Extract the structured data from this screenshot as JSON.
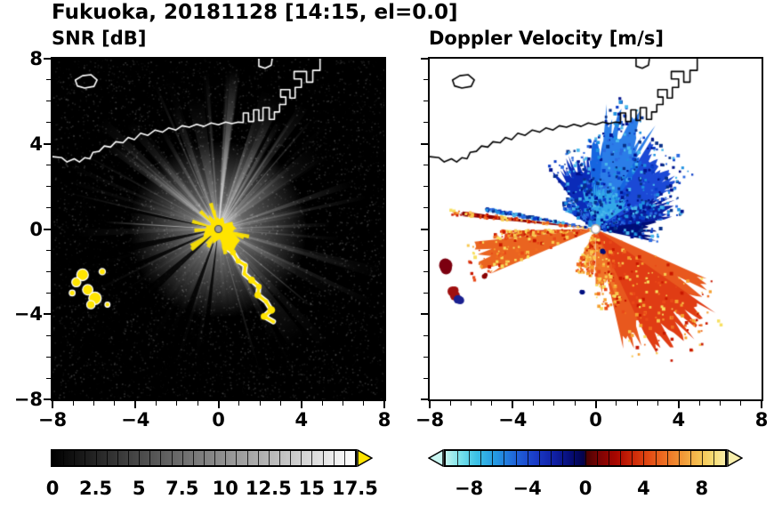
{
  "title": "Fukuoka, 20181128 [14:15, el=0.0]",
  "panels": [
    {
      "label": "SNR [dB]"
    },
    {
      "label": "Doppler Velocity [m/s]"
    }
  ],
  "axes": {
    "xlim": [
      -8,
      8
    ],
    "ylim": [
      -8,
      8
    ],
    "xtick_values": [
      -8,
      -4,
      0,
      4,
      8
    ],
    "xtick_labels": [
      "−8",
      "−4",
      "0",
      "4",
      "8"
    ],
    "ytick_values": [
      8,
      4,
      0,
      -4,
      -8
    ],
    "ytick_labels": [
      "8",
      "4",
      "0",
      "−4",
      "−8"
    ]
  },
  "colorbars": [
    {
      "min": 0,
      "max": 17.5,
      "tick_values": [
        0,
        2.5,
        5,
        7.5,
        10,
        12.5,
        15,
        17.5
      ],
      "ticks": [
        "0",
        "2.5",
        "5",
        "7.5",
        "10",
        "12.5",
        "15",
        "17.5"
      ],
      "gradient": [
        "#000000",
        "#ffffff"
      ],
      "minor_divisions": 28,
      "over_arrow_color": "#ffe400"
    },
    {
      "min": -9.6,
      "max": 9.6,
      "tick_values": [
        -8,
        -4,
        0,
        4,
        8
      ],
      "ticks": [
        "−8",
        "−4",
        "0",
        "4",
        "8"
      ],
      "stops": [
        [
          0,
          "#c2f4ee"
        ],
        [
          0.05,
          "#7ae2ea"
        ],
        [
          0.11,
          "#3cc2e6"
        ],
        [
          0.18,
          "#2498e2"
        ],
        [
          0.25,
          "#2064da"
        ],
        [
          0.32,
          "#1a3cc8"
        ],
        [
          0.39,
          "#1020a4"
        ],
        [
          0.45,
          "#060c74"
        ],
        [
          0.495,
          "#03034a"
        ],
        [
          0.505,
          "#4c0202"
        ],
        [
          0.55,
          "#7c0404"
        ],
        [
          0.61,
          "#a80600"
        ],
        [
          0.67,
          "#cc2808"
        ],
        [
          0.73,
          "#e44c14"
        ],
        [
          0.79,
          "#ee7224"
        ],
        [
          0.85,
          "#f29a38"
        ],
        [
          0.91,
          "#f5c252"
        ],
        [
          0.96,
          "#f7dd74"
        ],
        [
          1,
          "#f9edaa"
        ]
      ],
      "minor_divisions": 24,
      "under_arrow_color": "#c9f6f2",
      "over_arrow_color": "#f8efac"
    }
  ],
  "coastline": {
    "island": [
      [
        -6.9,
        7.0
      ],
      [
        -6.55,
        7.2
      ],
      [
        -6.15,
        7.25
      ],
      [
        -5.85,
        7.0
      ],
      [
        -6.0,
        6.7
      ],
      [
        -6.45,
        6.62
      ],
      [
        -6.8,
        6.72
      ],
      [
        -6.9,
        7.0
      ]
    ],
    "main": [
      [
        -8,
        3.4
      ],
      [
        -7.55,
        3.35
      ],
      [
        -7.3,
        3.15
      ],
      [
        -6.95,
        3.3
      ],
      [
        -6.7,
        3.15
      ],
      [
        -6.45,
        3.35
      ],
      [
        -6.2,
        3.3
      ],
      [
        -6.05,
        3.6
      ],
      [
        -5.75,
        3.65
      ],
      [
        -5.5,
        3.9
      ],
      [
        -5.2,
        3.85
      ],
      [
        -4.95,
        4.1
      ],
      [
        -4.6,
        4.05
      ],
      [
        -4.35,
        4.3
      ],
      [
        -4.05,
        4.2
      ],
      [
        -3.75,
        4.5
      ],
      [
        -3.4,
        4.4
      ],
      [
        -3.05,
        4.65
      ],
      [
        -2.7,
        4.55
      ],
      [
        -2.4,
        4.75
      ],
      [
        -2.05,
        4.65
      ],
      [
        -1.75,
        4.85
      ],
      [
        -1.4,
        4.78
      ],
      [
        -1.05,
        4.92
      ],
      [
        -0.7,
        4.82
      ],
      [
        -0.35,
        4.98
      ],
      [
        0,
        4.9
      ],
      [
        0.35,
        5.02
      ],
      [
        0.65,
        4.95
      ],
      [
        0.95,
        5.02
      ],
      [
        1.2,
        5.0
      ],
      [
        1.2,
        5.45
      ],
      [
        1.45,
        5.45
      ],
      [
        1.45,
        5.05
      ],
      [
        1.7,
        5.05
      ],
      [
        1.7,
        5.6
      ],
      [
        1.95,
        5.6
      ],
      [
        1.95,
        5.1
      ],
      [
        2.15,
        5.1
      ],
      [
        2.15,
        5.7
      ],
      [
        2.45,
        5.7
      ],
      [
        2.45,
        5.15
      ],
      [
        2.7,
        5.15
      ],
      [
        2.7,
        5.5
      ],
      [
        2.95,
        5.5
      ],
      [
        2.95,
        5.85
      ],
      [
        3.25,
        5.85
      ],
      [
        3.25,
        6.2
      ],
      [
        3.0,
        6.2
      ],
      [
        3.0,
        6.55
      ],
      [
        3.45,
        6.55
      ],
      [
        3.45,
        6.15
      ],
      [
        3.7,
        6.15
      ],
      [
        3.7,
        6.65
      ],
      [
        4.0,
        6.65
      ],
      [
        4.0,
        7.05
      ],
      [
        3.65,
        7.05
      ],
      [
        3.65,
        7.4
      ],
      [
        4.25,
        7.4
      ],
      [
        4.25,
        6.9
      ],
      [
        4.55,
        6.9
      ],
      [
        4.55,
        7.45
      ],
      [
        4.9,
        7.45
      ],
      [
        4.9,
        8.05
      ]
    ],
    "top_piece": [
      [
        1.95,
        8.05
      ],
      [
        1.95,
        7.65
      ],
      [
        2.25,
        7.55
      ],
      [
        2.55,
        7.7
      ],
      [
        2.6,
        8.05
      ]
    ]
  },
  "chart_data": [
    {
      "type": "heatmap",
      "variable": "SNR",
      "units": "dB",
      "title": "SNR [dB]",
      "site": "Fukuoka",
      "date": "20181128",
      "time": "14:15",
      "elevation_deg": 0.0,
      "xlim": [
        -8,
        8
      ],
      "ylim": [
        -8,
        8
      ],
      "xticks": [
        -8,
        -4,
        0,
        4,
        8
      ],
      "yticks": [
        -8,
        -4,
        0,
        4,
        8
      ],
      "colorbar": {
        "range": [
          0,
          17.5
        ],
        "ticks": [
          0,
          2.5,
          5,
          7.5,
          10,
          12.5,
          15,
          17.5
        ],
        "colormap": "black-to-white",
        "over_color": "#ffe400"
      },
      "description": "Radar PPI centered on the radar at the origin: bright white radial echo fan strongest to the north and east, saturated yellow clutter at the center and along the coastline running southeast, isolated yellow ground-clutter patches to the southwest, dark blocked-beam spokes toward the west/southwest, faint noise speckle elsewhere, coastline outlined in white.",
      "render": {
        "speckle_count": 9000,
        "ray_count": 110,
        "bright_ray_count": 14,
        "glow_radius": 100,
        "wide_wedges": [
          [
            68,
            9,
            165,
            0.3
          ],
          [
            100,
            7,
            150,
            0.26
          ],
          [
            38,
            8,
            140,
            0.22
          ],
          [
            130,
            6,
            120,
            0.18
          ],
          [
            305,
            8,
            155,
            0.22
          ],
          [
            332,
            5,
            120,
            0.16
          ],
          [
            12,
            6,
            110,
            0.15
          ],
          [
            85,
            5,
            175,
            0.3
          ],
          [
            55,
            4,
            170,
            0.28
          ]
        ],
        "west_ray": [
          176.5,
          128,
          0.5,
          0.85
        ],
        "dark_rays": [
          [
            192,
            2.2
          ],
          [
            204,
            1.6
          ],
          [
            222,
            2.8
          ],
          [
            250,
            2.0
          ],
          [
            263,
            1.4
          ],
          [
            168,
            1.0
          ]
        ],
        "clutter_path": [
          [
            0.35,
            -0.85
          ],
          [
            0.7,
            -1.1
          ],
          [
            0.95,
            -1.5
          ],
          [
            1.3,
            -1.7
          ],
          [
            1.25,
            -2.1
          ],
          [
            1.6,
            -2.4
          ],
          [
            1.95,
            -2.7
          ],
          [
            1.9,
            -3.1
          ],
          [
            2.3,
            -3.4
          ],
          [
            2.55,
            -3.8
          ],
          [
            2.2,
            -4.1
          ],
          [
            2.65,
            -4.35
          ]
        ],
        "clutter_blobs": [
          [
            -6.55,
            -2.15,
            0.28
          ],
          [
            -6.85,
            -2.5,
            0.22
          ],
          [
            -6.3,
            -2.85,
            0.25
          ],
          [
            -5.95,
            -3.25,
            0.3
          ],
          [
            -6.15,
            -3.55,
            0.2
          ],
          [
            -5.6,
            -2.0,
            0.15
          ],
          [
            -7.05,
            -3.0,
            0.14
          ],
          [
            -5.35,
            -3.55,
            0.12
          ]
        ]
      }
    },
    {
      "type": "heatmap",
      "variable": "Doppler velocity",
      "units": "m/s",
      "title": "Doppler Velocity [m/s]",
      "site": "Fukuoka",
      "date": "20181128",
      "time": "14:15",
      "elevation_deg": 0.0,
      "xlim": [
        -8,
        8
      ],
      "ylim": [
        -8,
        8
      ],
      "xticks": [
        -8,
        -4,
        0,
        4,
        8
      ],
      "yticks": [
        -8,
        -4,
        0,
        4,
        8
      ],
      "colorbar": {
        "range": [
          -9.6,
          9.6
        ],
        "ticks": [
          -8,
          -4,
          0,
          4,
          8
        ],
        "colormap": "cyan-blue-navy / darkred-red-orange-yellow diverging"
      },
      "description": "Approaching (blue, negative) velocities in a fan north and northeast of the radar with a dark-navy lobe east of center; receding (orange/red, positive) velocities in a fan to the south-southeast and a wedge pointing west; thin dark-red ray to the west; isolated red/navy echo patches to the west-southwest; coastline outlined in black on white background.",
      "render": {
        "sectors": [
          [
            -12,
            28,
            70,
            0.3,
            "#000d78",
            "b"
          ],
          [
            8,
            30,
            95,
            0.3,
            "#0b1fa0",
            "b"
          ],
          [
            28,
            58,
            118,
            0.3,
            "#1b49d6",
            "b"
          ],
          [
            55,
            95,
            102,
            0.3,
            "#1565e0",
            "b"
          ],
          [
            60,
            85,
            142,
            0.35,
            "#2b7de8",
            "b"
          ],
          [
            95,
            128,
            88,
            0.3,
            "#0b2bb8",
            "b"
          ],
          [
            35,
            110,
            52,
            0.3,
            "#32a7e8",
            "b"
          ],
          [
            128,
            148,
            44,
            0.4,
            "#2450d8",
            "b"
          ],
          [
            169,
            170.8,
            118,
            0.06,
            "#001080",
            "b"
          ],
          [
            283,
            336,
            148,
            0.3,
            "#e8581e",
            "w"
          ],
          [
            295,
            325,
            168,
            0.25,
            "#e03c14",
            "w"
          ],
          [
            270,
            290,
            85,
            0.35,
            "#ef7428",
            "w"
          ],
          [
            243,
            268,
            50,
            0.4,
            "#f08a38",
            "w"
          ],
          [
            186,
            203,
            140,
            0.18,
            "#ea6420",
            "w"
          ],
          [
            181,
            186,
            108,
            0.2,
            "#d43a10",
            "w"
          ],
          [
            172.5,
            174.5,
            156,
            0.06,
            "#8a0000",
            "w"
          ]
        ],
        "blue_palette": [
          "#49b8ec",
          "#1e90e0",
          "#0a3cc8",
          "#00128c",
          "#2a68e0",
          "#083088"
        ],
        "warm_palette": [
          "#f5a030",
          "#e84818",
          "#c81800",
          "#f8c850",
          "#ef6c20",
          "#f8e060"
        ],
        "patches": [
          [
            -7.25,
            -1.75,
            0.3,
            "#7c0010"
          ],
          [
            -6.85,
            -3.0,
            0.28,
            "#a01010"
          ],
          [
            -6.6,
            -3.28,
            0.2,
            "#1a2090"
          ],
          [
            -5.35,
            -2.2,
            0.13,
            "#8a0000"
          ],
          [
            -0.6,
            -2.9,
            0.16,
            "#001080"
          ],
          [
            0.35,
            -1.05,
            0.12,
            "#000d78"
          ]
        ],
        "speckle_count": 1400
      }
    }
  ]
}
